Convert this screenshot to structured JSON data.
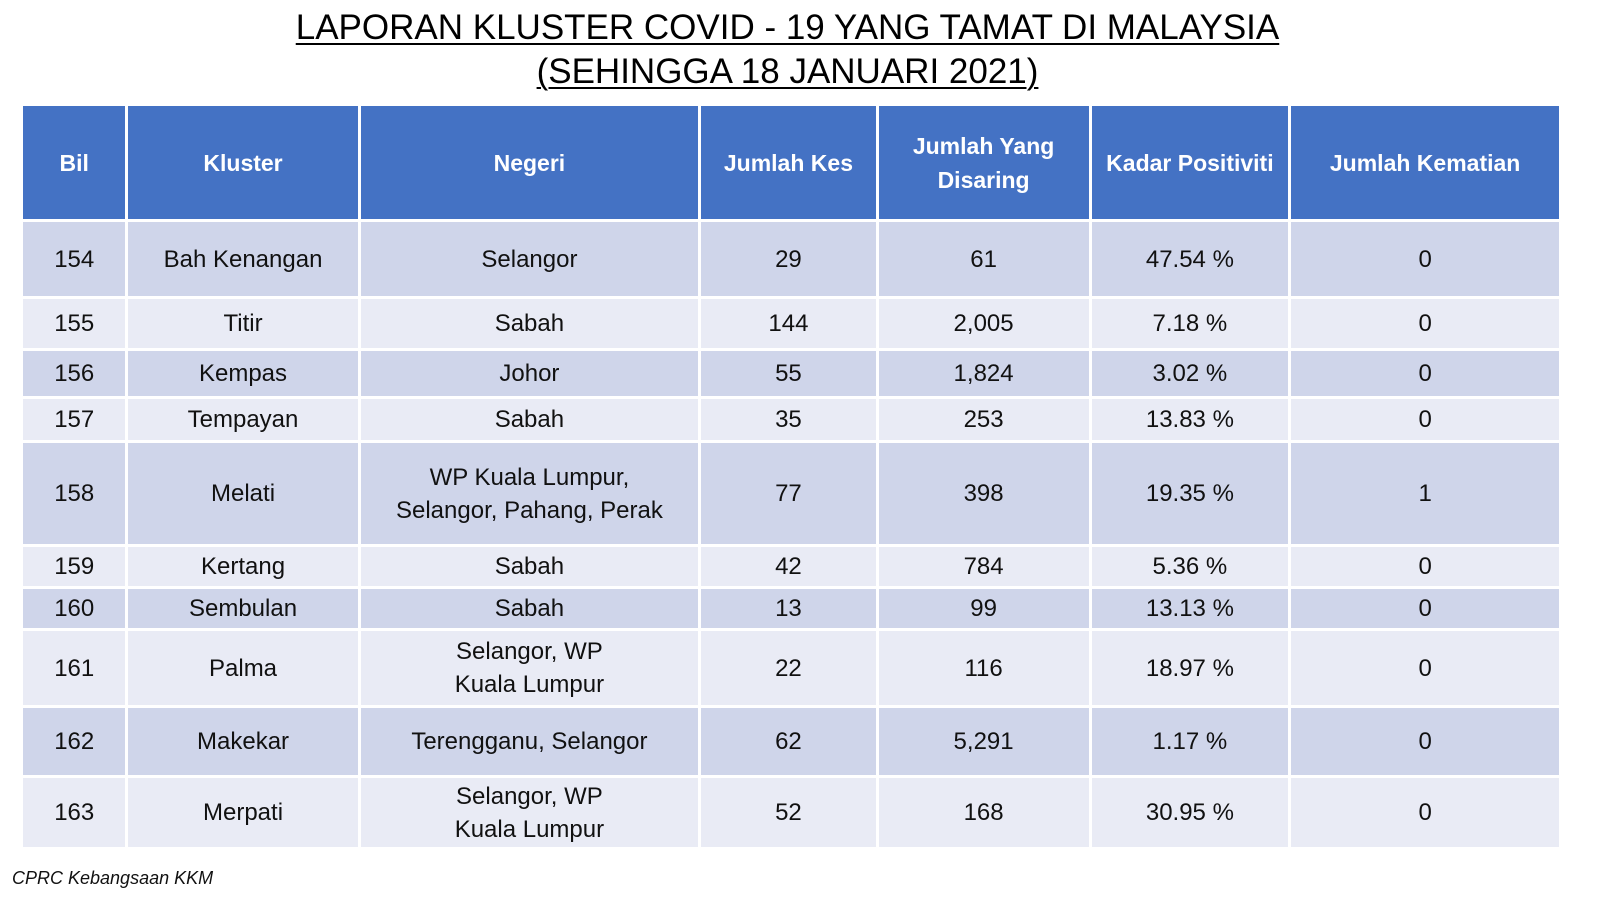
{
  "title": {
    "line1": "LAPORAN KLUSTER COVID - 19 YANG TAMAT DI MALAYSIA",
    "line2": "(SEHINGGA 18 JANUARI 2021)"
  },
  "table": {
    "headers": {
      "bil": "Bil",
      "kluster": "Kluster",
      "negeri": "Negeri",
      "jumlah_kes": "Jumlah Kes",
      "jumlah_disaring": "Jumlah Yang Disaring",
      "kadar_positiviti": "Kadar Positiviti",
      "jumlah_kematian": "Jumlah Kematian"
    },
    "rows": [
      {
        "bil": "154",
        "kluster": "Bah Kenangan",
        "negeri": "Selangor",
        "kes": "29",
        "disaring": "61",
        "positiviti": "47.54 %",
        "kematian": "0"
      },
      {
        "bil": "155",
        "kluster": "Titir",
        "negeri": "Sabah",
        "kes": "144",
        "disaring": "2,005",
        "positiviti": "7.18 %",
        "kematian": "0"
      },
      {
        "bil": "156",
        "kluster": "Kempas",
        "negeri": "Johor",
        "kes": "55",
        "disaring": "1,824",
        "positiviti": "3.02 %",
        "kematian": "0"
      },
      {
        "bil": "157",
        "kluster": "Tempayan",
        "negeri": "Sabah",
        "kes": "35",
        "disaring": "253",
        "positiviti": "13.83 %",
        "kematian": "0"
      },
      {
        "bil": "158",
        "kluster": "Melati",
        "negeri": "WP Kuala Lumpur, Selangor, Pahang, Perak",
        "kes": "77",
        "disaring": "398",
        "positiviti": "19.35 %",
        "kematian": "1"
      },
      {
        "bil": "159",
        "kluster": "Kertang",
        "negeri": "Sabah",
        "kes": "42",
        "disaring": "784",
        "positiviti": "5.36 %",
        "kematian": "0"
      },
      {
        "bil": "160",
        "kluster": "Sembulan",
        "negeri": "Sabah",
        "kes": "13",
        "disaring": "99",
        "positiviti": "13.13 %",
        "kematian": "0"
      },
      {
        "bil": "161",
        "kluster": "Palma",
        "negeri": "Selangor, WP Kuala Lumpur",
        "kes": "22",
        "disaring": "116",
        "positiviti": "18.97 %",
        "kematian": "0"
      },
      {
        "bil": "162",
        "kluster": "Makekar",
        "negeri": "Terengganu, Selangor",
        "kes": "62",
        "disaring": "5,291",
        "positiviti": "1.17 %",
        "kematian": "0"
      },
      {
        "bil": "163",
        "kluster": "Merpati",
        "negeri": "Selangor, WP Kuala Lumpur",
        "kes": "52",
        "disaring": "168",
        "positiviti": "30.95 %",
        "kematian": "0"
      }
    ]
  },
  "footer": {
    "source": "CPRC Kebangsaan KKM"
  },
  "colors": {
    "header_bg": "#4472c4",
    "row_dark": "#cfd5ea",
    "row_light": "#e9ebf5"
  }
}
